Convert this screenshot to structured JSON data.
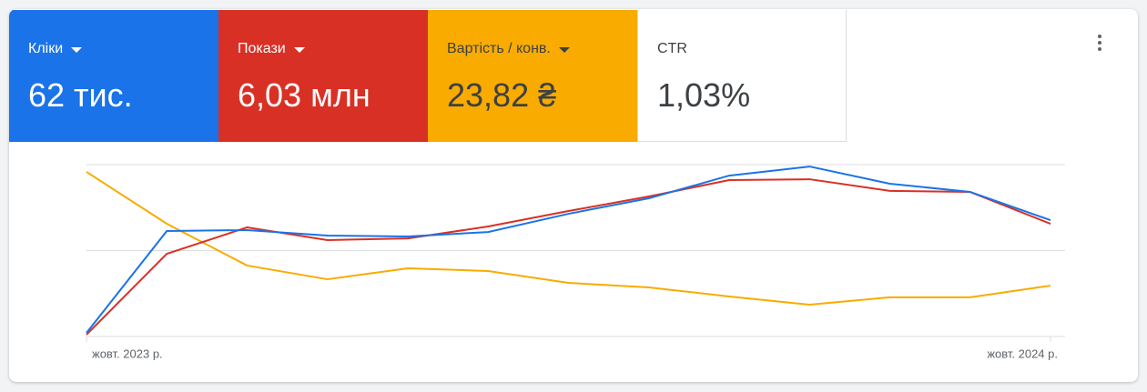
{
  "metrics": [
    {
      "label": "Кліки",
      "value": "62 тис.",
      "color": "#1a73e8",
      "text_color": "#ffffff"
    },
    {
      "label": "Покази",
      "value": "6,03 млн",
      "color": "#d93025",
      "text_color": "#ffffff"
    },
    {
      "label": "Вартість / конв.",
      "value": "23,82 ₴",
      "color": "#f9ab00",
      "text_color": "#3c4043"
    },
    {
      "label": "CTR",
      "value": "1,03%",
      "color": "#ffffff",
      "text_color": "#3c4043"
    }
  ],
  "chart_data": {
    "type": "line",
    "categories": [
      "жовт. 2023 р.",
      null,
      null,
      null,
      null,
      null,
      null,
      null,
      null,
      null,
      null,
      null,
      "жовт. 2024 р."
    ],
    "series": [
      {
        "color": "#f9ab00",
        "values": [
          95.8,
          65.6,
          41.3,
          33.3,
          39.7,
          38.1,
          31.2,
          28.6,
          23.3,
          18.5,
          22.8,
          22.8,
          29.6
        ]
      },
      {
        "color": "#d93025",
        "values": [
          1.1,
          48.1,
          63.5,
          56.1,
          57.1,
          64.0,
          73.0,
          81.5,
          91.0,
          91.5,
          84.7,
          84.1,
          65.6
        ]
      },
      {
        "color": "#1a73e8",
        "values": [
          2.1,
          61.4,
          61.9,
          58.7,
          58.2,
          60.8,
          71.4,
          80.4,
          93.6,
          98.9,
          88.9,
          84.1,
          67.7
        ]
      }
    ],
    "ylim": [
      0,
      100
    ],
    "yticks": [
      0,
      50,
      100
    ],
    "grid": true
  }
}
